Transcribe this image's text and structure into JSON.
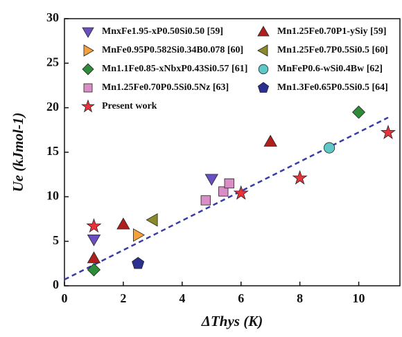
{
  "chart_data": {
    "type": "scatter",
    "x_label": "ΔThys (K)",
    "y_label": "Ue (kJmol-1)",
    "xlim": [
      0,
      11.4
    ],
    "ylim": [
      0,
      30
    ],
    "xticks": [
      0,
      2,
      4,
      6,
      8,
      10
    ],
    "yticks": [
      0,
      5,
      10,
      15,
      20,
      25,
      30
    ],
    "series": [
      {
        "name": "MnxFe1.95-xP0.50Si0.50 [59]",
        "color": "#6a4fc1",
        "marker": "triangle-down",
        "x": [
          1,
          5
        ],
        "values": [
          5.2,
          12
        ]
      },
      {
        "name": "Mn1.25Fe0.70P1-ySiy [59]",
        "color": "#b01e1e",
        "marker": "triangle-up",
        "x": [
          1,
          2,
          7
        ],
        "values": [
          3.1,
          6.9,
          16.2
        ]
      },
      {
        "name": "MnFe0.95P0.582Si0.34B0.078 [60]",
        "color": "#f7a03a",
        "marker": "triangle-right",
        "x": [
          2.5
        ],
        "values": [
          5.7
        ]
      },
      {
        "name": "Mn1.25Fe0.7P0.5Si0.5 [60]",
        "color": "#8a8a2a",
        "marker": "triangle-left",
        "x": [
          3
        ],
        "values": [
          7.4
        ]
      },
      {
        "name": "Mn1.1Fe0.85-xNbxP0.43Si0.57 [61]",
        "color": "#2e8b3a",
        "marker": "diamond",
        "x": [
          1,
          10
        ],
        "values": [
          1.8,
          19.5
        ]
      },
      {
        "name": "MnFeP0.6-wSi0.4Bw [62]",
        "color": "#5ec8c8",
        "marker": "circle",
        "x": [
          9
        ],
        "values": [
          15.5
        ]
      },
      {
        "name": "Mn1.25Fe0.70P0.5Si0.5Nz [63]",
        "color": "#d98fc6",
        "marker": "square",
        "x": [
          4.8,
          5.4,
          5.6
        ],
        "values": [
          9.6,
          10.6,
          11.5
        ]
      },
      {
        "name": "Mn1.3Fe0.65P0.5Si0.5 [64]",
        "color": "#2b2f8f",
        "marker": "pentagon",
        "x": [
          2.5
        ],
        "values": [
          2.5
        ]
      },
      {
        "name": "Present work",
        "color": "#e8333a",
        "marker": "star",
        "x": [
          1,
          6,
          8,
          11
        ],
        "values": [
          6.7,
          10.4,
          12.1,
          17.2
        ]
      }
    ],
    "fit_line": {
      "color": "#3a3aa8",
      "x": [
        0,
        11
      ],
      "values": [
        0.7,
        18.9
      ]
    }
  }
}
